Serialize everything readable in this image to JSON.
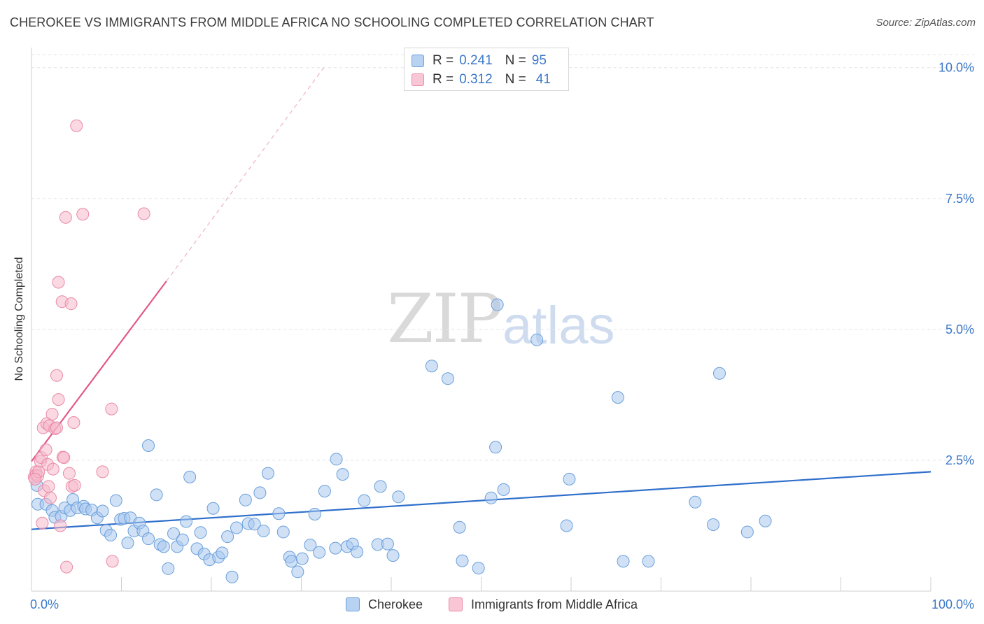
{
  "header": {
    "title": "CHEROKEE VS IMMIGRANTS FROM MIDDLE AFRICA NO SCHOOLING COMPLETED CORRELATION CHART",
    "source": "Source: ZipAtlas.com"
  },
  "watermark": {
    "zip": "ZIP",
    "atlas": "atlas"
  },
  "legend": {
    "rows": [
      {
        "r_label": "R =",
        "r_value": "0.241",
        "n_label": "N =",
        "n_value": "95"
      },
      {
        "r_label": "R =",
        "r_value": "0.312",
        "n_label": "N =",
        "n_value": "41"
      }
    ]
  },
  "bottom_legend": {
    "series1": "Cherokee",
    "series2": "Immigrants from Middle Africa"
  },
  "colors": {
    "blue_fill": "#a9c8ef",
    "blue_stroke": "#6a9fdb",
    "blue_line": "#2f6fcb",
    "pink_fill": "#f6b9cc",
    "pink_stroke": "#e98aa8",
    "pink_line": "#e2588a",
    "tick_text": "#3a78c9",
    "grid": "#e3e3e3"
  },
  "chart_data": {
    "type": "scatter",
    "title": "CHEROKEE VS IMMIGRANTS FROM MIDDLE AFRICA NO SCHOOLING COMPLETED CORRELATION CHART",
    "xlabel": "",
    "ylabel": "No Schooling Completed",
    "xlim": [
      0,
      100
    ],
    "ylim": [
      0,
      10.25
    ],
    "x_tick_labels": [
      "0.0%",
      "100.0%"
    ],
    "y_ticks": [
      2.5,
      5.0,
      7.5,
      10.0
    ],
    "y_tick_labels": [
      "2.5%",
      "5.0%",
      "7.5%",
      "10.0%"
    ],
    "grid": "horizontal dashed",
    "series": [
      {
        "name": "Cherokee",
        "r": 0.241,
        "n": 95,
        "trend": {
          "x": [
            0,
            100
          ],
          "y": [
            1.18,
            2.28
          ],
          "dashed_extension": false
        },
        "points": [
          [
            0.6,
            2.02
          ],
          [
            0.7,
            1.66
          ],
          [
            1.6,
            1.66
          ],
          [
            2.3,
            1.54
          ],
          [
            2.6,
            1.41
          ],
          [
            3.3,
            1.43
          ],
          [
            3.7,
            1.59
          ],
          [
            4.3,
            1.54
          ],
          [
            4.6,
            1.75
          ],
          [
            5.1,
            1.59
          ],
          [
            5.8,
            1.62
          ],
          [
            6.0,
            1.57
          ],
          [
            6.7,
            1.55
          ],
          [
            7.3,
            1.4
          ],
          [
            7.9,
            1.53
          ],
          [
            8.3,
            1.16
          ],
          [
            8.8,
            1.07
          ],
          [
            9.4,
            1.73
          ],
          [
            9.9,
            1.37
          ],
          [
            10.3,
            1.39
          ],
          [
            10.7,
            0.92
          ],
          [
            11.0,
            1.4
          ],
          [
            11.4,
            1.15
          ],
          [
            12.0,
            1.3
          ],
          [
            12.4,
            1.15
          ],
          [
            13.0,
            1.0
          ],
          [
            13.0,
            2.78
          ],
          [
            13.9,
            1.84
          ],
          [
            14.3,
            0.89
          ],
          [
            14.7,
            0.85
          ],
          [
            15.2,
            0.43
          ],
          [
            15.8,
            1.1
          ],
          [
            16.2,
            0.85
          ],
          [
            16.8,
            0.98
          ],
          [
            17.2,
            1.33
          ],
          [
            17.6,
            2.18
          ],
          [
            18.4,
            0.81
          ],
          [
            18.8,
            1.12
          ],
          [
            19.2,
            0.71
          ],
          [
            19.8,
            0.6
          ],
          [
            20.2,
            1.58
          ],
          [
            20.8,
            0.65
          ],
          [
            21.2,
            0.73
          ],
          [
            21.8,
            1.04
          ],
          [
            22.3,
            0.27
          ],
          [
            22.8,
            1.21
          ],
          [
            23.8,
            1.74
          ],
          [
            24.1,
            1.29
          ],
          [
            24.8,
            1.28
          ],
          [
            25.4,
            1.88
          ],
          [
            25.8,
            1.15
          ],
          [
            26.3,
            2.25
          ],
          [
            27.5,
            1.48
          ],
          [
            28.0,
            1.13
          ],
          [
            28.7,
            0.65
          ],
          [
            28.9,
            0.57
          ],
          [
            29.6,
            0.37
          ],
          [
            30.1,
            0.62
          ],
          [
            31.0,
            0.88
          ],
          [
            31.5,
            1.47
          ],
          [
            32.0,
            0.74
          ],
          [
            32.6,
            1.91
          ],
          [
            33.8,
            0.82
          ],
          [
            33.9,
            2.52
          ],
          [
            34.6,
            2.23
          ],
          [
            35.1,
            0.85
          ],
          [
            35.7,
            0.9
          ],
          [
            36.2,
            0.75
          ],
          [
            37.0,
            1.73
          ],
          [
            38.5,
            0.89
          ],
          [
            38.8,
            2.0
          ],
          [
            39.6,
            0.9
          ],
          [
            40.2,
            0.68
          ],
          [
            40.8,
            1.8
          ],
          [
            44.5,
            4.3
          ],
          [
            46.3,
            4.06
          ],
          [
            47.6,
            1.22
          ],
          [
            47.9,
            0.58
          ],
          [
            49.7,
            0.44
          ],
          [
            51.6,
            2.75
          ],
          [
            51.1,
            1.78
          ],
          [
            52.5,
            1.94
          ],
          [
            51.8,
            5.47
          ],
          [
            56.2,
            4.8
          ],
          [
            59.5,
            1.25
          ],
          [
            59.8,
            2.14
          ],
          [
            65.2,
            3.7
          ],
          [
            65.8,
            0.57
          ],
          [
            68.6,
            0.57
          ],
          [
            73.8,
            1.7
          ],
          [
            75.8,
            1.27
          ],
          [
            76.5,
            4.16
          ],
          [
            79.6,
            1.13
          ],
          [
            81.6,
            1.34
          ]
        ]
      },
      {
        "name": "Immigrants from Middle Africa",
        "r": 0.312,
        "n": 41,
        "trend": {
          "x": [
            0,
            15
          ],
          "y": [
            2.48,
            5.92
          ],
          "dashed_extension": {
            "x": [
              15,
              32.5
            ],
            "y": [
              5.92,
              10.0
            ]
          }
        },
        "points": [
          [
            0.3,
            2.18
          ],
          [
            0.5,
            2.28
          ],
          [
            0.5,
            2.22
          ],
          [
            0.7,
            2.2
          ],
          [
            0.8,
            2.28
          ],
          [
            1.0,
            2.48
          ],
          [
            1.1,
            2.55
          ],
          [
            1.2,
            1.3
          ],
          [
            1.3,
            3.12
          ],
          [
            1.4,
            1.92
          ],
          [
            1.6,
            2.7
          ],
          [
            1.7,
            3.2
          ],
          [
            1.8,
            2.42
          ],
          [
            1.9,
            2.0
          ],
          [
            2.0,
            3.16
          ],
          [
            2.1,
            1.78
          ],
          [
            2.3,
            3.38
          ],
          [
            2.4,
            2.33
          ],
          [
            2.6,
            3.1
          ],
          [
            2.8,
            3.12
          ],
          [
            2.8,
            4.12
          ],
          [
            3.0,
            5.9
          ],
          [
            3.0,
            3.66
          ],
          [
            3.2,
            1.25
          ],
          [
            3.4,
            5.53
          ],
          [
            3.5,
            2.56
          ],
          [
            3.6,
            2.55
          ],
          [
            3.8,
            7.14
          ],
          [
            3.9,
            0.46
          ],
          [
            4.2,
            2.25
          ],
          [
            4.4,
            5.49
          ],
          [
            4.5,
            2.0
          ],
          [
            4.7,
            3.22
          ],
          [
            4.8,
            2.02
          ],
          [
            5.0,
            8.89
          ],
          [
            5.7,
            7.2
          ],
          [
            7.9,
            2.28
          ],
          [
            8.9,
            3.48
          ],
          [
            9.0,
            0.57
          ],
          [
            12.5,
            7.21
          ],
          [
            0.4,
            2.14
          ]
        ]
      }
    ]
  }
}
